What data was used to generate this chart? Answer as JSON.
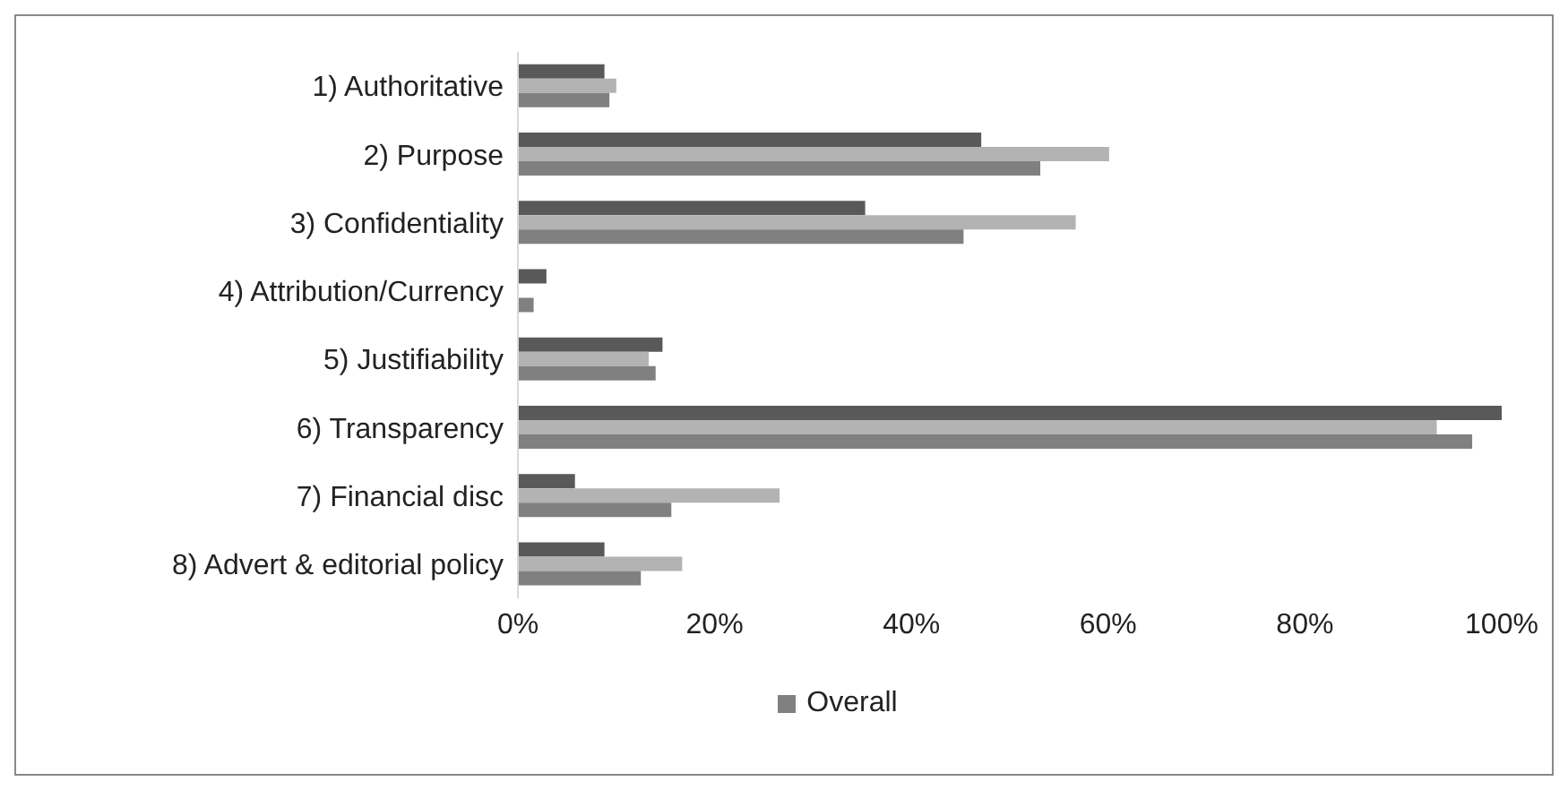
{
  "chart_data": {
    "type": "bar",
    "orientation": "horizontal",
    "categories": [
      "1) Authoritative",
      "2) Purpose",
      "3) Confidentiality",
      "4) Attribution/Currency",
      "5) Justifiability",
      "6) Transparency",
      "7) Financial disc",
      "8) Advert & editorial policy"
    ],
    "series": [
      {
        "color": "#595959",
        "values": [
          8.8,
          47.1,
          35.3,
          2.9,
          14.7,
          100,
          5.8,
          8.8
        ]
      },
      {
        "color": "#b3b3b3",
        "values": [
          10.0,
          60.1,
          56.7,
          null,
          13.3,
          93.4,
          26.6,
          16.7
        ]
      },
      {
        "name": "Overall",
        "color": "#808080",
        "values": [
          9.3,
          53.1,
          45.3,
          1.6,
          14.0,
          97.0,
          15.6,
          12.5
        ]
      }
    ],
    "xlim": [
      0,
      100
    ],
    "xticks": [
      {
        "value": 0,
        "label": "0%"
      },
      {
        "value": 20,
        "label": "20%"
      },
      {
        "value": 40,
        "label": "40%"
      },
      {
        "value": 60,
        "label": "60%"
      },
      {
        "value": 80,
        "label": "80%"
      },
      {
        "value": 100,
        "label": "100%"
      }
    ],
    "grid": false,
    "legend": "bottom"
  }
}
